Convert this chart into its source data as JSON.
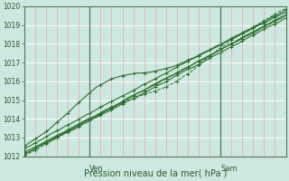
{
  "xlabel": "Pression niveau de la mer( hPa )",
  "ylim": [
    1012,
    1020
  ],
  "xlim": [
    0,
    96
  ],
  "yticks": [
    1012,
    1013,
    1014,
    1015,
    1016,
    1017,
    1018,
    1019,
    1020
  ],
  "ven_x": 24,
  "sam_x": 72,
  "bg_color": "#cce8e0",
  "grid_h_color": "#ffffff",
  "grid_v_color": "#e8aaaa",
  "line_color": "#2d6e2d",
  "vline_color": "#557755"
}
